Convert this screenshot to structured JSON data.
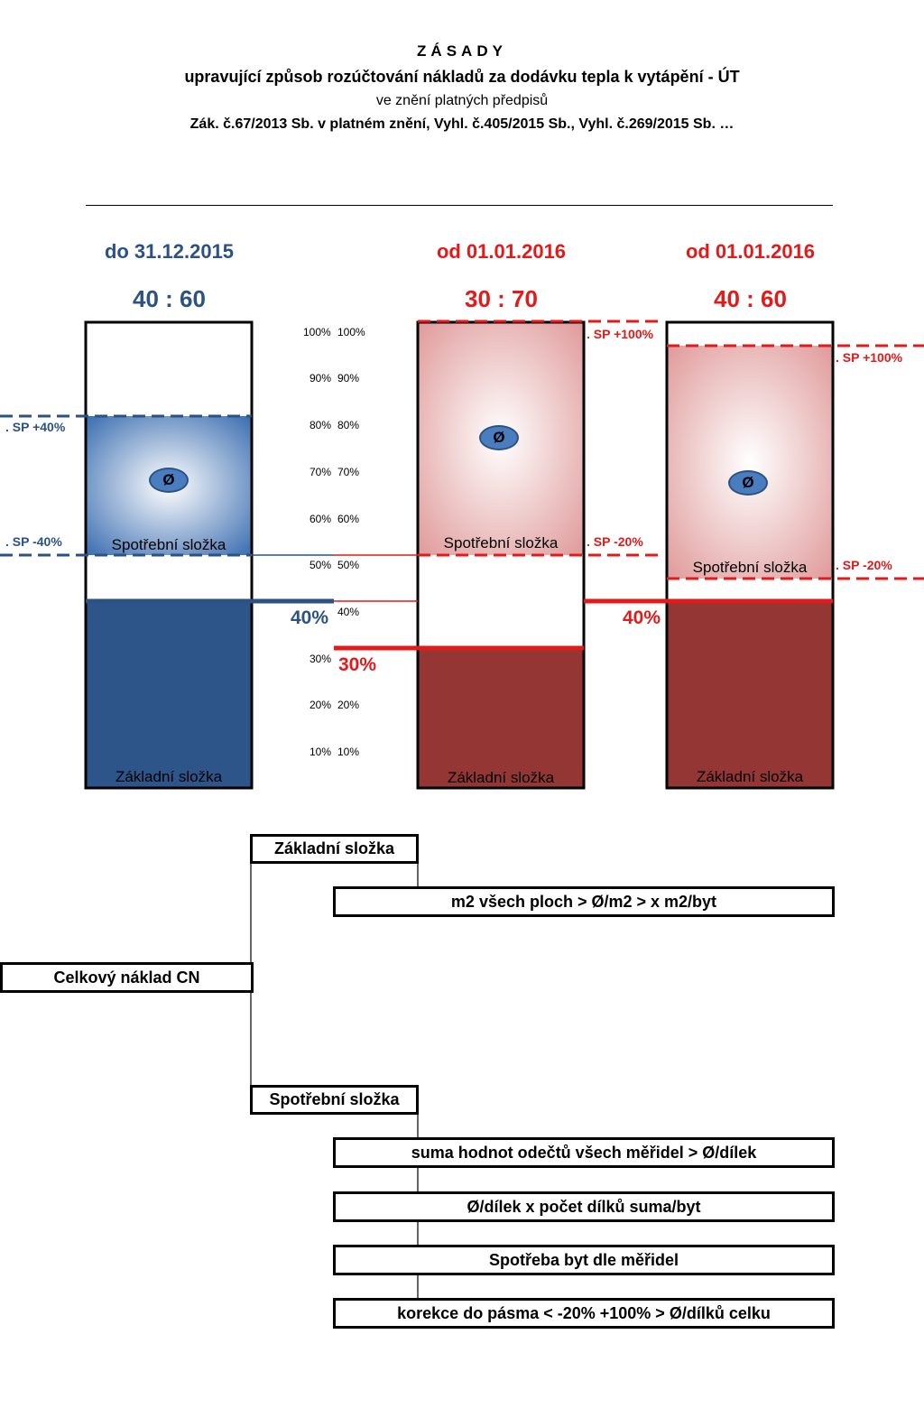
{
  "header": {
    "title": "ZÁSADY",
    "subtitle": "upravující způsob rozúčtování nákladů za dodávku tepla k vytápění - ÚT",
    "note": "ve znění platných předpisů",
    "law": "Zák. č.67/2013 Sb. v platném znění, Vyhl. č.405/2015 Sb., Vyhl. č.269/2015 Sb.   …"
  },
  "columns": [
    {
      "period": "do 31.12.2015",
      "ratio": "40 : 60",
      "base_pct": 40,
      "band_low": 52,
      "band_high": 80,
      "sp_plus": "SP +40%",
      "sp_minus": "SP -40%",
      "base_label": "40%",
      "spotrebni": "Spotřební složka",
      "zakladni": "Základní složka",
      "avg_symbol": "Ø",
      "colors": {
        "base": "#2d558a",
        "band": "#3a6db0"
      }
    },
    {
      "period": "od 01.01.2016",
      "ratio": "30 : 70",
      "base_pct": 30,
      "band_low": 52,
      "band_high": 100,
      "sp_plus": "SP +100%",
      "sp_minus": "SP -20%",
      "base_label": "30%",
      "spotrebni": "Spotřební složka",
      "zakladni": "Základní složka",
      "avg_symbol": "Ø",
      "colors": {
        "base": "#943634",
        "band": "#e9a6a6"
      }
    },
    {
      "period": "od 01.01.2016",
      "ratio": "40 : 60",
      "base_pct": 40,
      "band_low": 47,
      "band_high": 95,
      "sp_plus": "SP +100%",
      "sp_minus": "SP -20%",
      "base_label": "40%",
      "spotrebni": "Spotřební složka",
      "zakladni": "Základní složka",
      "avg_symbol": "Ø",
      "colors": {
        "base": "#943634",
        "band": "#e9a6a6"
      }
    }
  ],
  "scale": {
    "left": [
      "100%",
      "90%",
      "80%",
      "70%",
      "60%",
      "50%",
      "40%",
      "30%",
      "20%",
      "10%"
    ],
    "right": [
      "100%",
      "90%",
      "80%",
      "70%",
      "60%",
      "50%",
      "40%",
      "20%",
      "10%"
    ]
  },
  "tree": {
    "root": "Celkový náklad CN",
    "zakladni": "Základní složka",
    "zakladni_step": "m2 všech ploch > Ø/m2 >  x m2/byt",
    "spotrebni": "Spotřební složka",
    "spotrebni_steps": [
      "suma hodnot odečtů všech měřidel > Ø/dílek",
      "Ø/dílek x počet dílků suma/byt",
      "Spotřeba byt dle měřidel",
      "korekce do pásma < -20%    +100% > Ø/dílků celku"
    ]
  },
  "colors": {
    "blue": "#2c5283",
    "red": "#e21a1a"
  }
}
